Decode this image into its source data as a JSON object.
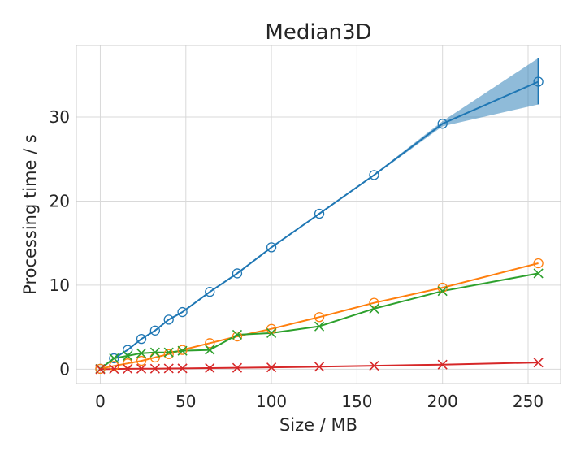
{
  "chart_data": {
    "type": "line",
    "title": "Median3D",
    "xlabel": "Size / MB",
    "ylabel": "Processing time / s",
    "xlim": [
      -14,
      269
    ],
    "ylim": [
      -1.7,
      38.5
    ],
    "xticks": [
      0,
      50,
      100,
      150,
      200,
      250
    ],
    "yticks": [
      0,
      10,
      20,
      30
    ],
    "grid": true,
    "series": [
      {
        "color": "#1f77b4",
        "marker": "circle",
        "x": [
          0,
          8,
          16,
          24,
          32,
          40,
          48,
          64,
          80,
          100,
          128,
          160,
          200,
          256
        ],
        "y": [
          0.05,
          1.3,
          2.3,
          3.6,
          4.6,
          5.9,
          6.8,
          9.2,
          11.4,
          14.5,
          18.5,
          23.1,
          29.2,
          34.2
        ],
        "band_low": [
          0.05,
          1.25,
          2.2,
          3.5,
          4.5,
          5.8,
          6.7,
          9.1,
          11.3,
          14.4,
          18.4,
          23.0,
          28.9,
          31.5
        ],
        "band_high": [
          0.05,
          1.35,
          2.4,
          3.7,
          4.7,
          6.0,
          6.9,
          9.3,
          11.5,
          14.6,
          18.6,
          23.2,
          29.5,
          37.0
        ]
      },
      {
        "color": "#ff7f0e",
        "marker": "circle",
        "x": [
          0,
          8,
          16,
          24,
          32,
          40,
          48,
          64,
          80,
          100,
          128,
          160,
          200,
          256
        ],
        "y": [
          0.05,
          0.4,
          0.7,
          1.0,
          1.4,
          1.8,
          2.3,
          3.1,
          3.9,
          4.8,
          6.2,
          7.9,
          9.7,
          12.6
        ]
      },
      {
        "color": "#2ca02c",
        "marker": "x",
        "x": [
          0,
          8,
          16,
          24,
          32,
          40,
          48,
          64,
          80,
          100,
          128,
          160,
          200,
          256
        ],
        "y": [
          0.05,
          1.3,
          1.6,
          1.9,
          2.0,
          2.0,
          2.2,
          2.3,
          4.1,
          4.3,
          5.1,
          7.2,
          9.3,
          11.4
        ]
      },
      {
        "color": "#d62728",
        "marker": "x",
        "x": [
          0,
          8,
          16,
          24,
          32,
          40,
          48,
          64,
          80,
          100,
          128,
          160,
          200,
          256
        ],
        "y": [
          0.0,
          0.03,
          0.05,
          0.06,
          0.07,
          0.09,
          0.1,
          0.14,
          0.17,
          0.22,
          0.3,
          0.42,
          0.55,
          0.8
        ]
      }
    ]
  }
}
